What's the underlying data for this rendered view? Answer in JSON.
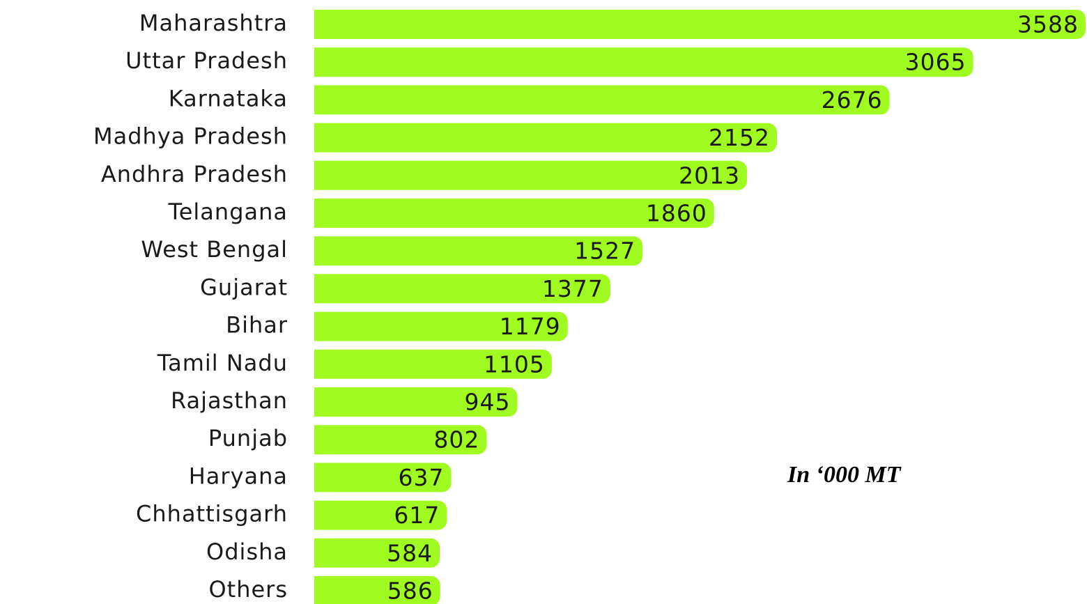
{
  "chart_data": {
    "type": "bar",
    "orientation": "horizontal",
    "annotation": "In ‘000 MT",
    "color": "#a0fc20",
    "categories": [
      "Maharashtra",
      "Uttar Pradesh",
      "Karnataka",
      "Madhya Pradesh",
      "Andhra Pradesh",
      "Telangana",
      "West Bengal",
      "Gujarat",
      "Bihar",
      "Tamil Nadu",
      "Rajasthan",
      "Punjab",
      "Haryana",
      "Chhattisgarh",
      "Odisha",
      "Others"
    ],
    "values": [
      3588,
      3065,
      2676,
      2152,
      2013,
      1860,
      1527,
      1377,
      1179,
      1105,
      945,
      802,
      637,
      617,
      584,
      586
    ]
  }
}
